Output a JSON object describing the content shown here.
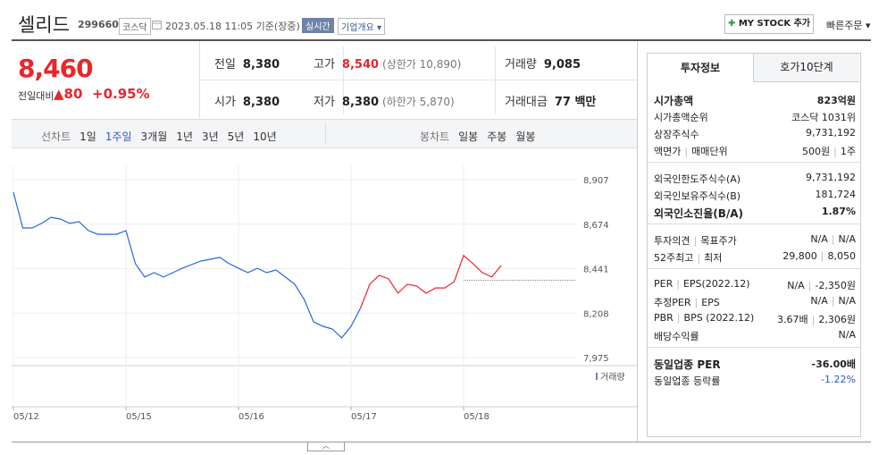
{
  "header": {
    "name": "셀리드",
    "code": "299660",
    "market": "코스닥",
    "time": "2023.05.18 11:05 기준(장중)",
    "realtime": "실시간",
    "overview": "기업개요",
    "mystock": "MY STOCK 추가",
    "quick_order": "빠른주문"
  },
  "price": {
    "current": "8,460",
    "change_label": "전일대비",
    "change": "80",
    "change_rate": "+0.95%"
  },
  "quote_table": {
    "rows": [
      [
        {
          "label": "전일",
          "value": "8,380"
        },
        {
          "label": "고가",
          "value": "8,540",
          "note": "(상한가 10,890)"
        },
        {
          "label": "거래량",
          "value": "9,085"
        }
      ],
      [
        {
          "label": "시가",
          "value": "8,380"
        },
        {
          "label": "저가",
          "value": "8,380",
          "note": "(하한가 5,870)"
        },
        {
          "label": "거래대금",
          "value": "77 백만"
        }
      ]
    ]
  },
  "tabs": {
    "line_label": "선차트",
    "line_periods": [
      "1일",
      "1주일",
      "3개월",
      "1년",
      "3년",
      "5년",
      "10년"
    ],
    "line_active": 1,
    "candle_label": "봉차트",
    "candle_periods": [
      "일봉",
      "주봉",
      "월봉"
    ]
  },
  "chart_data": {
    "type": "line",
    "x": [
      0,
      1,
      2,
      3,
      4,
      5,
      6,
      7,
      8,
      9,
      10,
      11,
      12,
      13,
      14,
      15,
      16,
      17,
      18,
      19,
      20,
      21,
      22,
      23,
      24,
      25,
      26,
      27,
      28,
      29,
      30,
      31,
      32,
      33,
      34,
      35,
      36,
      37,
      38,
      39,
      40,
      41,
      42,
      43,
      44,
      45,
      46,
      47,
      48,
      49,
      50,
      51,
      52
    ],
    "xlim": [
      0,
      60
    ],
    "xticks": [
      {
        "value": 0,
        "label": "05/12"
      },
      {
        "value": 12,
        "label": "05/15"
      },
      {
        "value": 24,
        "label": "05/16"
      },
      {
        "value": 36,
        "label": "05/17"
      },
      {
        "value": 48,
        "label": "05/18"
      }
    ],
    "ylim": [
      7975,
      8907
    ],
    "yticks": [
      {
        "value": 8907,
        "label": "8,907"
      },
      {
        "value": 8674,
        "label": "8,674"
      },
      {
        "value": 8441,
        "label": "8,441"
      },
      {
        "value": 8208,
        "label": "8,208"
      },
      {
        "value": 7975,
        "label": "7,975"
      }
    ],
    "grid": true,
    "baseline": 8380,
    "series": [
      {
        "color": "#2a64d8",
        "values": [
          8841,
          8654,
          8654,
          8678,
          8710,
          8701,
          8678,
          8687,
          8640,
          8621,
          8621,
          8621,
          8640,
          8467,
          8397,
          8420,
          8397,
          8420,
          8443,
          8462,
          8481,
          8490,
          8500,
          8467,
          8443,
          8420,
          8443,
          8420,
          8434,
          8397,
          8359,
          8280,
          8162,
          8139,
          8125,
          8078,
          8139,
          8233,
          null,
          null,
          null,
          null,
          null,
          null,
          null,
          null,
          null,
          null,
          null,
          null,
          null,
          null,
          null
        ]
      },
      {
        "color": "#e8262b",
        "values": [
          null,
          null,
          null,
          null,
          null,
          null,
          null,
          null,
          null,
          null,
          null,
          null,
          null,
          null,
          null,
          null,
          null,
          null,
          null,
          null,
          null,
          null,
          null,
          null,
          null,
          null,
          null,
          null,
          null,
          null,
          null,
          null,
          null,
          null,
          null,
          null,
          null,
          8233,
          8359,
          8406,
          8387,
          8312,
          8359,
          8350,
          8312,
          8340,
          8340,
          8373,
          8510,
          8467,
          8420,
          8397,
          8457
        ]
      }
    ],
    "volume_label": "거래량"
  },
  "info": {
    "tabs": [
      "투자정보",
      "호가10단계"
    ],
    "groups": [
      [
        {
          "label": [
            "시가총액"
          ],
          "value": [
            "823억원"
          ],
          "bold": true
        },
        {
          "label": [
            "시가총액순위"
          ],
          "value": [
            "코스닥 1031위"
          ]
        },
        {
          "label": [
            "상장주식수"
          ],
          "value": [
            "9,731,192"
          ]
        },
        {
          "label": [
            "액면가",
            "매매단위"
          ],
          "value": [
            "500원",
            "1주"
          ]
        }
      ],
      [
        {
          "label": [
            "외국인한도주식수(A)"
          ],
          "value": [
            "9,731,192"
          ]
        },
        {
          "label": [
            "외국인보유주식수(B)"
          ],
          "value": [
            "181,724"
          ]
        },
        {
          "label": [
            "외국인소진율(B/A)"
          ],
          "value": [
            "1.87%"
          ],
          "bold": true
        }
      ],
      [
        {
          "label": [
            "투자의견",
            "목표주가"
          ],
          "value": [
            "N/A",
            "N/A"
          ]
        },
        {
          "label": [
            "52주최고",
            "최저"
          ],
          "value": [
            "29,800",
            "8,050"
          ]
        }
      ],
      [
        {
          "label": [
            "PER",
            "EPS(2022.12)"
          ],
          "value": [
            "N/A",
            "-2,350원"
          ]
        },
        {
          "label": [
            "추정PER",
            "EPS"
          ],
          "value": [
            "N/A",
            "N/A"
          ]
        },
        {
          "label": [
            "PBR",
            "BPS (2022.12)"
          ],
          "value": [
            "3.67배",
            "2,306원"
          ]
        },
        {
          "label": [
            "배당수익률"
          ],
          "value": [
            "N/A"
          ]
        }
      ],
      [
        {
          "label": [
            "동일업종 PER"
          ],
          "value": [
            "-36.00배"
          ],
          "bold": true
        },
        {
          "label": [
            "동일업종 등락률"
          ],
          "value": [
            "-1.22%"
          ],
          "blue": true
        }
      ]
    ]
  }
}
